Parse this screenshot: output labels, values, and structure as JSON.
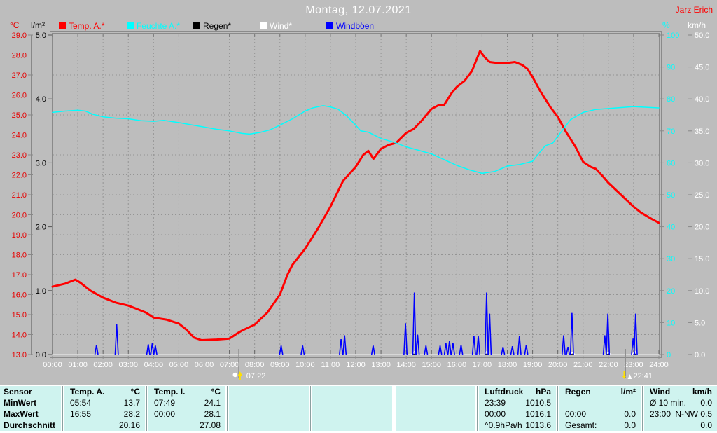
{
  "header": {
    "title": "Montag, 12.07.2021",
    "station": "Jarz Erich"
  },
  "legend": [
    {
      "label": "Temp. A.*",
      "color": "#ff0000"
    },
    {
      "label": "Feuchte A.*",
      "color": "#00ffff"
    },
    {
      "label": "Regen*",
      "color": "#000000"
    },
    {
      "label": "Wind*",
      "color": "#ffffff"
    },
    {
      "label": "Windböen",
      "color": "#0000ff"
    }
  ],
  "axes": {
    "temp": {
      "unit": "°C",
      "color": "#e60000",
      "labels": [
        "29.0",
        "28.0",
        "27.0",
        "26.0",
        "25.0",
        "24.0",
        "23.0",
        "22.0",
        "21.0",
        "20.0",
        "19.0",
        "18.0",
        "17.0",
        "16.0",
        "15.0",
        "14.0",
        "13.0"
      ]
    },
    "rain": {
      "unit": "l/m²",
      "color": "#000000",
      "labels": [
        "5.0",
        "4.0",
        "3.0",
        "2.0",
        "1.0",
        "0.0"
      ]
    },
    "humidity": {
      "unit": "%",
      "color": "#00ffff",
      "labels": [
        "100",
        "90",
        "80",
        "70",
        "60",
        "50",
        "40",
        "30",
        "20",
        "10",
        "0"
      ]
    },
    "wind": {
      "unit": "km/h",
      "color": "#ffffff",
      "labels": [
        "50.0",
        "45.0",
        "40.0",
        "35.0",
        "30.0",
        "25.0",
        "20.0",
        "15.0",
        "10.0",
        "5.0",
        "0.0"
      ]
    },
    "x": {
      "labels": [
        "00:00",
        "01:00",
        "02:00",
        "03:00",
        "04:00",
        "05:00",
        "06:00",
        "07:00",
        "08:00",
        "09:00",
        "10:00",
        "11:00",
        "12:00",
        "13:00",
        "14:00",
        "15:00",
        "16:00",
        "17:00",
        "18:00",
        "19:00",
        "20:00",
        "21:00",
        "22:00",
        "23:00",
        "24:00"
      ]
    }
  },
  "markers": {
    "sunrise": {
      "label": "07:22",
      "hour": 7.366
    },
    "sunset": {
      "label": "22:41",
      "hour": 22.683
    }
  },
  "colors": {
    "background": "#bdbdbd",
    "grid": "#949494",
    "frame": "#8a8a8a",
    "table_bg": "#cff3ef",
    "title_text": "#ffffff"
  },
  "chart_data": {
    "type": "line",
    "title": "Montag, 12.07.2021",
    "x_unit": "hour",
    "x_range": [
      0,
      24
    ],
    "grid": true,
    "series": [
      {
        "name": "Temp. A.",
        "unit": "°C",
        "color": "#ff0000",
        "scale": "temp",
        "axis_range": [
          13,
          29
        ],
        "style": "line",
        "width": 3,
        "points": [
          [
            0,
            16.4
          ],
          [
            0.5,
            16.55
          ],
          [
            0.9,
            16.75
          ],
          [
            1.1,
            16.6
          ],
          [
            1.5,
            16.2
          ],
          [
            2,
            15.85
          ],
          [
            2.5,
            15.6
          ],
          [
            3,
            15.45
          ],
          [
            3.3,
            15.3
          ],
          [
            3.7,
            15.1
          ],
          [
            4,
            14.85
          ],
          [
            4.5,
            14.75
          ],
          [
            5,
            14.55
          ],
          [
            5.3,
            14.25
          ],
          [
            5.6,
            13.85
          ],
          [
            5.9,
            13.72
          ],
          [
            6.5,
            13.75
          ],
          [
            7,
            13.8
          ],
          [
            7.3,
            14.05
          ],
          [
            7.5,
            14.2
          ],
          [
            8,
            14.5
          ],
          [
            8.5,
            15.1
          ],
          [
            9,
            16.0
          ],
          [
            9.3,
            17.0
          ],
          [
            9.5,
            17.5
          ],
          [
            10,
            18.3
          ],
          [
            10.5,
            19.3
          ],
          [
            11,
            20.4
          ],
          [
            11.5,
            21.7
          ],
          [
            12,
            22.4
          ],
          [
            12.3,
            23.0
          ],
          [
            12.5,
            23.2
          ],
          [
            12.7,
            22.8
          ],
          [
            13,
            23.3
          ],
          [
            13.3,
            23.5
          ],
          [
            13.6,
            23.6
          ],
          [
            14,
            24.1
          ],
          [
            14.3,
            24.3
          ],
          [
            14.6,
            24.7
          ],
          [
            15,
            25.3
          ],
          [
            15.3,
            25.5
          ],
          [
            15.5,
            25.5
          ],
          [
            15.8,
            26.1
          ],
          [
            16,
            26.4
          ],
          [
            16.3,
            26.7
          ],
          [
            16.6,
            27.2
          ],
          [
            16.92,
            28.2
          ],
          [
            17.1,
            27.9
          ],
          [
            17.3,
            27.65
          ],
          [
            17.6,
            27.6
          ],
          [
            18,
            27.6
          ],
          [
            18.3,
            27.65
          ],
          [
            18.6,
            27.5
          ],
          [
            18.8,
            27.3
          ],
          [
            19,
            26.9
          ],
          [
            19.3,
            26.2
          ],
          [
            19.7,
            25.4
          ],
          [
            20,
            24.9
          ],
          [
            20.3,
            24.2
          ],
          [
            20.7,
            23.4
          ],
          [
            21,
            22.65
          ],
          [
            21.3,
            22.4
          ],
          [
            21.5,
            22.3
          ],
          [
            21.8,
            21.9
          ],
          [
            22,
            21.6
          ],
          [
            22.5,
            21.0
          ],
          [
            23,
            20.4
          ],
          [
            23.3,
            20.1
          ],
          [
            23.7,
            19.8
          ],
          [
            24,
            19.6
          ]
        ]
      },
      {
        "name": "Feuchte A.",
        "unit": "%",
        "color": "#00ffff",
        "scale": "percent",
        "axis_range": [
          0,
          100
        ],
        "style": "line",
        "width": 1.5,
        "points": [
          [
            0,
            75.8
          ],
          [
            0.5,
            76.2
          ],
          [
            1,
            76.5
          ],
          [
            1.3,
            76.2
          ],
          [
            1.6,
            75.2
          ],
          [
            2,
            74.4
          ],
          [
            2.5,
            74.0
          ],
          [
            3,
            73.8
          ],
          [
            3.5,
            73.2
          ],
          [
            4,
            73.0
          ],
          [
            4.4,
            73.3
          ],
          [
            5,
            72.6
          ],
          [
            5.5,
            71.9
          ],
          [
            6,
            71.2
          ],
          [
            6.5,
            70.5
          ],
          [
            7,
            70.0
          ],
          [
            7.5,
            69.2
          ],
          [
            7.8,
            69.0
          ],
          [
            8.2,
            69.5
          ],
          [
            8.6,
            70.3
          ],
          [
            9,
            71.8
          ],
          [
            9.5,
            73.8
          ],
          [
            10,
            76.2
          ],
          [
            10.3,
            77.2
          ],
          [
            10.7,
            77.9
          ],
          [
            11,
            77.5
          ],
          [
            11.3,
            76.8
          ],
          [
            11.6,
            75.0
          ],
          [
            12,
            71.8
          ],
          [
            12.2,
            70.0
          ],
          [
            12.5,
            69.6
          ],
          [
            13,
            67.6
          ],
          [
            13.5,
            66.5
          ],
          [
            14,
            65.0
          ],
          [
            14.5,
            63.9
          ],
          [
            15,
            62.8
          ],
          [
            15.5,
            61.0
          ],
          [
            16,
            59.2
          ],
          [
            16.5,
            57.8
          ],
          [
            17,
            56.7
          ],
          [
            17.5,
            57.3
          ],
          [
            18,
            59.0
          ],
          [
            18.5,
            59.5
          ],
          [
            19,
            60.5
          ],
          [
            19.2,
            62.5
          ],
          [
            19.5,
            65.3
          ],
          [
            19.8,
            66.2
          ],
          [
            20,
            68.3
          ],
          [
            20.5,
            73.5
          ],
          [
            21,
            75.8
          ],
          [
            21.5,
            76.7
          ],
          [
            22,
            77.0
          ],
          [
            22.5,
            77.3
          ],
          [
            23,
            77.6
          ],
          [
            23.5,
            77.4
          ],
          [
            24,
            77.2
          ]
        ]
      },
      {
        "name": "Regen",
        "unit": "l/m²",
        "color": "#000000",
        "scale": "rain",
        "axis_range": [
          0,
          5
        ],
        "style": "line",
        "width": 1.5,
        "points": [
          [
            0,
            0
          ],
          [
            24,
            0
          ]
        ]
      },
      {
        "name": "Wind",
        "unit": "km/h",
        "color": "#ffffff",
        "scale": "windspeed",
        "axis_range": [
          0,
          50
        ],
        "style": "line",
        "width": 1.5,
        "points": [
          [
            0,
            0
          ],
          [
            14.2,
            0
          ],
          [
            14.32,
            0.45
          ],
          [
            14.42,
            0
          ],
          [
            17.1,
            0
          ],
          [
            17.18,
            0.45
          ],
          [
            17.28,
            0
          ],
          [
            20.48,
            0
          ],
          [
            20.58,
            0.35
          ],
          [
            20.68,
            0
          ],
          [
            21.9,
            0
          ],
          [
            22.0,
            0.35
          ],
          [
            22.1,
            0
          ],
          [
            22.95,
            0
          ],
          [
            23.05,
            0.5
          ],
          [
            23.15,
            0
          ],
          [
            24,
            0
          ]
        ]
      },
      {
        "name": "Windböen",
        "unit": "km/h",
        "color": "#0000ff",
        "scale": "windspeed",
        "axis_range": [
          0,
          50
        ],
        "style": "spikes",
        "width": 1.6,
        "points": [
          [
            1.74,
            1.5
          ],
          [
            2.54,
            4.7
          ],
          [
            3.79,
            1.6
          ],
          [
            3.95,
            1.8
          ],
          [
            4.07,
            1.4
          ],
          [
            9.05,
            1.4
          ],
          [
            9.9,
            1.4
          ],
          [
            11.42,
            2.4
          ],
          [
            11.56,
            3.0
          ],
          [
            12.69,
            1.4
          ],
          [
            13.97,
            4.9
          ],
          [
            14.32,
            9.7
          ],
          [
            14.45,
            3.1
          ],
          [
            14.78,
            1.4
          ],
          [
            15.34,
            1.4
          ],
          [
            15.57,
            1.8
          ],
          [
            15.71,
            2.1
          ],
          [
            15.85,
            1.8
          ],
          [
            16.17,
            1.5
          ],
          [
            16.68,
            2.9
          ],
          [
            16.85,
            2.9
          ],
          [
            17.18,
            9.7
          ],
          [
            17.3,
            6.4
          ],
          [
            17.83,
            1.2
          ],
          [
            18.2,
            1.3
          ],
          [
            18.48,
            2.9
          ],
          [
            18.75,
            1.5
          ],
          [
            20.23,
            3.0
          ],
          [
            20.4,
            1.2
          ],
          [
            20.56,
            6.5
          ],
          [
            21.86,
            3.0
          ],
          [
            21.98,
            6.4
          ],
          [
            22.98,
            2.5
          ],
          [
            23.08,
            6.4
          ]
        ]
      }
    ]
  },
  "table": {
    "row_labels": [
      "Sensor",
      "MinWert",
      "MaxWert",
      "Durchschnitt"
    ],
    "columns": [
      {
        "header": "Temp. A.",
        "unit": "°C",
        "rows": [
          [
            "05:54",
            "13.7"
          ],
          [
            "16:55",
            "28.2"
          ],
          [
            "",
            "20.16"
          ]
        ]
      },
      {
        "header": "Temp. I.",
        "unit": "°C",
        "rows": [
          [
            "07:49",
            "24.1"
          ],
          [
            "00:00",
            "28.1"
          ],
          [
            "",
            "27.08"
          ]
        ]
      },
      null,
      null,
      null,
      {
        "header": "Luftdruck",
        "unit": "hPa",
        "rows": [
          [
            "23:39",
            "1010.5"
          ],
          [
            "00:00",
            "1016.1"
          ],
          [
            "^0.9hPa/h",
            "1013.6"
          ]
        ]
      },
      {
        "header": "Regen",
        "unit": "l/m²",
        "rows": [
          [
            "",
            ""
          ],
          [
            "00:00",
            "0.0"
          ],
          [
            "Gesamt:",
            "0.0"
          ]
        ]
      },
      {
        "header": "Wind",
        "unit": "km/h",
        "rows": [
          [
            "Ø 10 min.",
            "0.0"
          ],
          [
            "23:00",
            "N-NW 0.5"
          ],
          [
            "",
            "0.0"
          ]
        ]
      }
    ]
  }
}
